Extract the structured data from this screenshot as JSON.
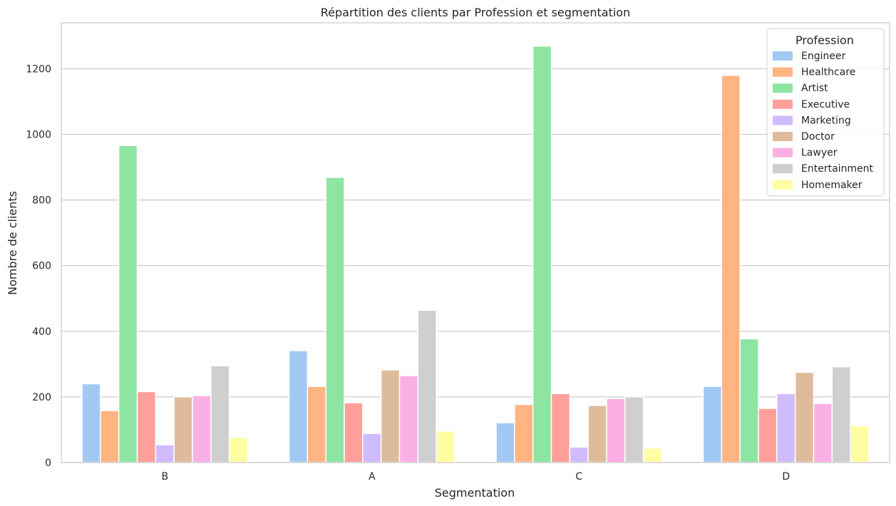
{
  "chart_data": {
    "type": "bar",
    "title": "Répartition des clients par Profession et segmentation",
    "xlabel": "Segmentation",
    "ylabel": "Nombre de clients",
    "categories": [
      "B",
      "A",
      "C",
      "D"
    ],
    "ylim": [
      0,
      1340
    ],
    "yticks": [
      0,
      200,
      400,
      600,
      800,
      1000,
      1200
    ],
    "grid": true,
    "legend": {
      "title": "Profession",
      "placement": "top-right"
    },
    "series": [
      {
        "name": "Engineer",
        "color": "#a1c9f4",
        "values": [
          240,
          341,
          121,
          232
        ]
      },
      {
        "name": "Healthcare",
        "color": "#ffb482",
        "values": [
          158,
          232,
          177,
          1180
        ]
      },
      {
        "name": "Artist",
        "color": "#8de5a1",
        "values": [
          966,
          869,
          1269,
          377
        ]
      },
      {
        "name": "Executive",
        "color": "#ff9f9b",
        "values": [
          216,
          182,
          210,
          165
        ]
      },
      {
        "name": "Marketing",
        "color": "#d0bbff",
        "values": [
          54,
          89,
          47,
          210
        ]
      },
      {
        "name": "Doctor",
        "color": "#debb9b",
        "values": [
          200,
          282,
          174,
          275
        ]
      },
      {
        "name": "Lawyer",
        "color": "#fab0e4",
        "values": [
          204,
          265,
          195,
          180
        ]
      },
      {
        "name": "Entertainment",
        "color": "#cfcfcf",
        "values": [
          295,
          464,
          200,
          292
        ]
      },
      {
        "name": "Homemaker",
        "color": "#fffea3",
        "values": [
          76,
          96,
          44,
          112
        ]
      }
    ]
  }
}
